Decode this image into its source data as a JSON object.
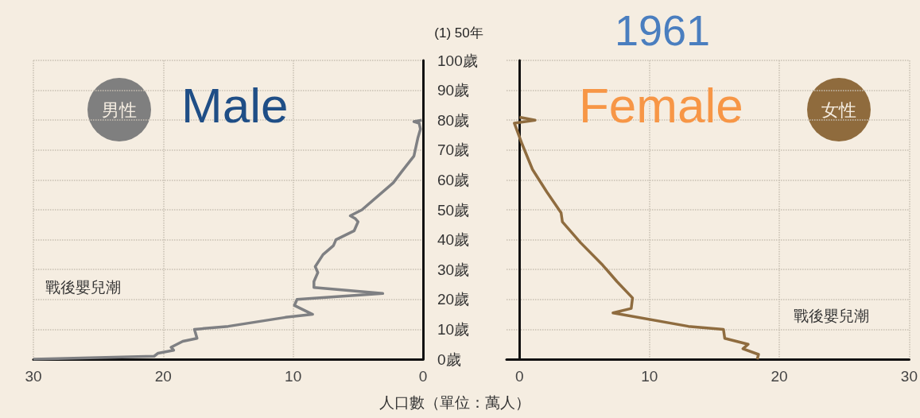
{
  "chart_data": [
    {
      "type": "line",
      "title": "(1) 50年",
      "xlabel": "人口數（單位：萬人）",
      "annotations": [
        "男性",
        "Male",
        "戰後嬰兒潮"
      ],
      "series": [
        {
          "color": "#7f8083",
          "x": [
            30,
            20.7,
            20.4,
            19.2,
            19.4,
            18.5,
            17.4,
            17.6,
            15,
            10.6,
            8.5,
            9.9,
            9.7,
            3.1,
            8.4,
            8.4,
            8.1,
            8.3,
            7.7,
            6.9,
            6.7,
            5.3,
            5.0,
            5.2,
            5.6,
            4.7,
            2.3,
            1.6,
            0.7,
            0.4,
            0.2,
            0.3,
            0.7,
            0.1
          ],
          "values": [
            0,
            1,
            2,
            3,
            4,
            6,
            7,
            10,
            11,
            14,
            15,
            18,
            20,
            22,
            24,
            26,
            29,
            31,
            35,
            38,
            40,
            43,
            46,
            47,
            48,
            50,
            59,
            63,
            68,
            74,
            77,
            79,
            79.5,
            80
          ]
        }
      ],
      "xlim": [
        30,
        0
      ],
      "xticks": [
        30,
        20,
        10,
        0
      ],
      "ylim": [
        0,
        100
      ],
      "yticks": [
        {
          "value": 0,
          "label": "0歲"
        },
        {
          "value": 10,
          "label": "10歲"
        },
        {
          "value": 20,
          "label": "20歲"
        },
        {
          "value": 30,
          "label": "30歲"
        },
        {
          "value": 40,
          "label": "40歲"
        },
        {
          "value": 50,
          "label": "50歲"
        },
        {
          "value": 60,
          "label": "60歲"
        },
        {
          "value": 70,
          "label": "70歲"
        },
        {
          "value": 80,
          "label": "80歲"
        },
        {
          "value": 90,
          "label": "90歲"
        },
        {
          "value": 100,
          "label": "100歲"
        }
      ],
      "grid": true,
      "marker": "none",
      "line_style": "solid"
    },
    {
      "type": "line",
      "title": "1961",
      "annotations": [
        "女性",
        "Female",
        "戰後嬰兒潮"
      ],
      "series": [
        {
          "color": "#8f6c3f",
          "x": [
            0,
            1.2,
            -0.4,
            0.2,
            1.0,
            2.1,
            3.2,
            3.3,
            4.7,
            6.4,
            7.5,
            8.7,
            8.6,
            7.2,
            13,
            15.7,
            15.8,
            17.6,
            17.2,
            18.4,
            18.3
          ],
          "values": [
            81,
            80,
            79,
            72,
            63.5,
            56,
            49,
            46,
            39,
            31.5,
            26,
            20.5,
            17,
            15.5,
            11,
            10,
            7,
            5,
            3.5,
            1.6,
            0
          ]
        }
      ],
      "xlim": [
        -1,
        30
      ],
      "xticks": [
        0,
        10,
        20,
        30
      ],
      "ylim": [
        0,
        100
      ],
      "yticks": [
        0,
        10,
        20,
        30,
        40,
        50,
        60,
        70,
        80,
        90,
        100
      ],
      "tick_labels": "x",
      "grid": true,
      "marker": "none",
      "line_style": "solid"
    }
  ]
}
